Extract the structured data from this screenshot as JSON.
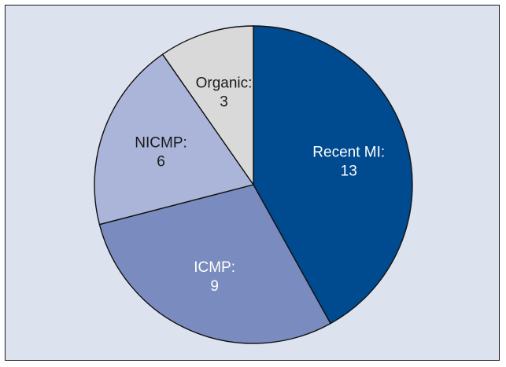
{
  "chart_data": {
    "type": "pie",
    "slices": [
      {
        "label": "Recent MI:",
        "value": 13,
        "color": "#004a8f",
        "text_color": "#ffffff"
      },
      {
        "label": "ICMP:",
        "value": 9,
        "color": "#7a8cbf",
        "text_color": "#ffffff"
      },
      {
        "label": "NICMP:",
        "value": 6,
        "color": "#aab5d9",
        "text_color": "#1a1a1a"
      },
      {
        "label": "Organic:",
        "value": 3,
        "color": "#d9d9d9",
        "text_color": "#1a1a1a"
      }
    ],
    "start": "12 o'clock",
    "direction": "clockwise",
    "background": "#dde2ef"
  }
}
